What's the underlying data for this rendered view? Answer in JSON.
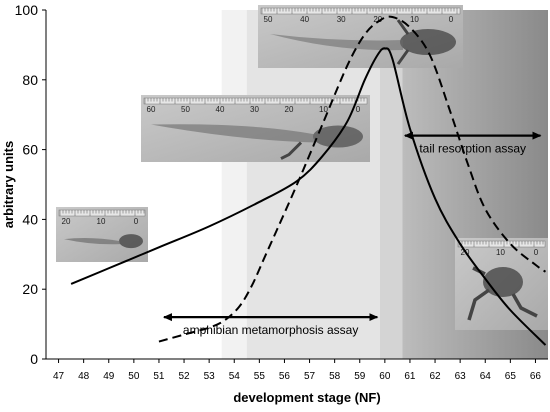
{
  "chart_data": {
    "type": "line",
    "xlabel": "development stage (NF)",
    "ylabel": "arbitrary units",
    "xlim": [
      46.5,
      66.5
    ],
    "ylim": [
      0,
      100
    ],
    "x_ticks": [
      47,
      48,
      49,
      50,
      51,
      52,
      53,
      54,
      55,
      56,
      57,
      58,
      59,
      60,
      61,
      62,
      63,
      64,
      65,
      66
    ],
    "y_ticks": [
      0,
      20,
      40,
      60,
      80,
      100
    ],
    "grid": false,
    "series": [
      {
        "style": "solid",
        "x": [
          47.5,
          49,
          51,
          53,
          55,
          56.5,
          57.5,
          58.5,
          59.2,
          59.7,
          60.0,
          60.3,
          61,
          62,
          63,
          64,
          65,
          66.4
        ],
        "y": [
          21.5,
          26,
          32,
          38,
          45,
          51,
          58,
          68,
          80,
          87,
          89,
          86,
          66,
          46,
          33,
          23,
          14,
          4
        ]
      },
      {
        "style": "dashed",
        "x": [
          51,
          52,
          53,
          53.6,
          54.2,
          54.7,
          55.2,
          55.7,
          56.5,
          57.5,
          58.5,
          59.2,
          59.8,
          60.3,
          61,
          61.8,
          62.6,
          63.3,
          64,
          65,
          66,
          66.4
        ],
        "y": [
          5,
          7,
          9,
          11,
          15,
          21,
          29,
          37,
          50,
          67,
          84,
          93,
          97,
          98,
          95,
          87,
          71,
          56,
          43,
          33,
          27,
          25
        ]
      }
    ],
    "annotations": [
      {
        "text": "amphibian metamorphosis assay",
        "x_range": [
          51.2,
          59.7
        ],
        "y": 12
      },
      {
        "text": "tail resorption assay",
        "x_range": [
          60.8,
          66.2
        ],
        "y": 64
      }
    ],
    "background_bands": [
      {
        "x_range": [
          46.5,
          53.5
        ],
        "color": "#ffffff"
      },
      {
        "x_range": [
          53.5,
          54.5
        ],
        "color": "#f2f2f2"
      },
      {
        "x_range": [
          54.5,
          59.8
        ],
        "color": "#e4e4e4"
      },
      {
        "x_range": [
          59.8,
          60.7
        ],
        "color": "#d4d4d4"
      },
      {
        "x_range": [
          60.7,
          66.5
        ],
        "color": "gradient",
        "from": "#bcbcbc",
        "to": "#8a8a8a"
      }
    ],
    "photo_insets": [
      {
        "name": "tadpole-early",
        "ruler_labels": [
          "20",
          "10",
          "0"
        ]
      },
      {
        "name": "tadpole-hindlimb",
        "ruler_labels": [
          "60",
          "50",
          "40",
          "30",
          "20",
          "10",
          "0"
        ]
      },
      {
        "name": "tadpole-forelimb",
        "ruler_labels": [
          "50",
          "40",
          "30",
          "20",
          "10",
          "0"
        ]
      },
      {
        "name": "froglet",
        "ruler_labels": [
          "20",
          "10",
          "0"
        ]
      }
    ]
  }
}
